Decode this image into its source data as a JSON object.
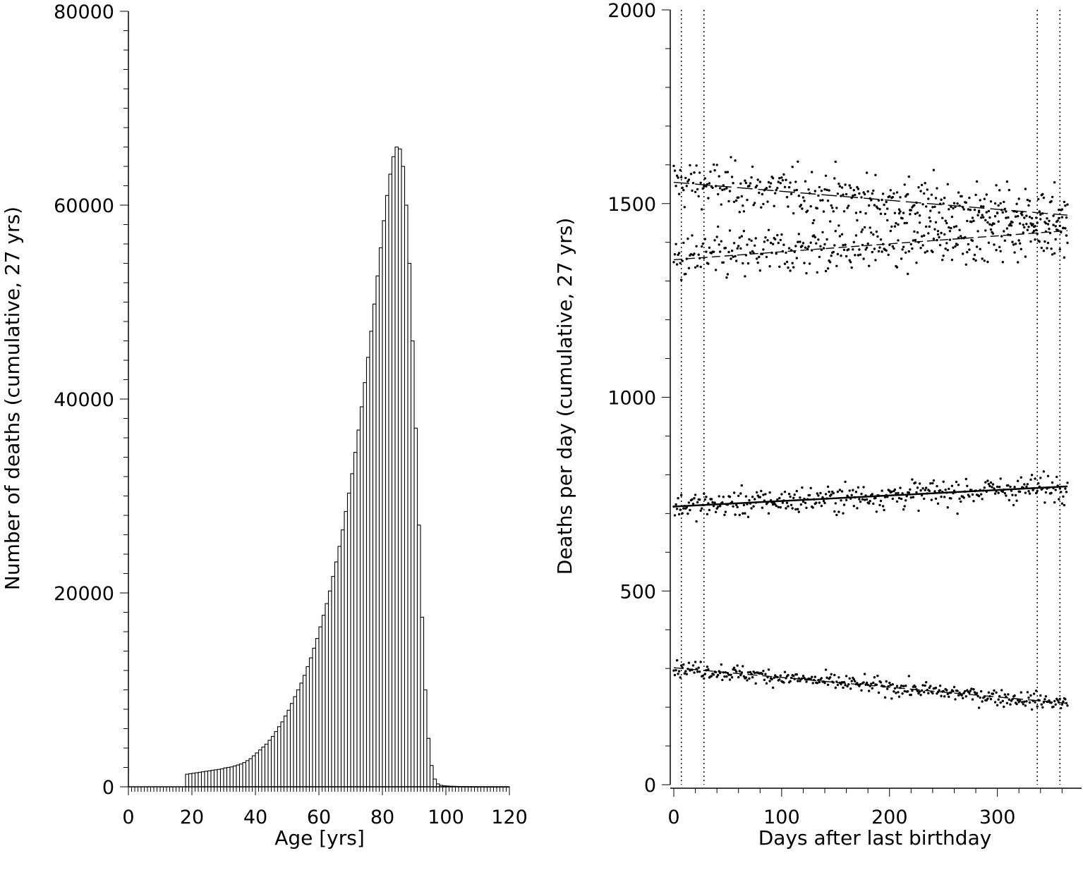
{
  "chart_data": [
    {
      "type": "bar",
      "xlabel": "Age [yrs]",
      "ylabel": "Number of deaths (cumulative, 27 yrs)",
      "xlim": [
        0,
        120
      ],
      "ylim": [
        0,
        80000
      ],
      "xticks": [
        0,
        20,
        40,
        60,
        80,
        100,
        120
      ],
      "yticks": [
        0,
        20000,
        40000,
        60000,
        80000
      ],
      "bar_width_years": 1,
      "x": [
        18,
        19,
        20,
        21,
        22,
        23,
        24,
        25,
        26,
        27,
        28,
        29,
        30,
        31,
        32,
        33,
        34,
        35,
        36,
        37,
        38,
        39,
        40,
        41,
        42,
        43,
        44,
        45,
        46,
        47,
        48,
        49,
        50,
        51,
        52,
        53,
        54,
        55,
        56,
        57,
        58,
        59,
        60,
        61,
        62,
        63,
        64,
        65,
        66,
        67,
        68,
        69,
        70,
        71,
        72,
        73,
        74,
        75,
        76,
        77,
        78,
        79,
        80,
        81,
        82,
        83,
        84,
        85,
        86,
        87,
        88,
        89,
        90,
        91,
        92,
        93,
        94,
        95,
        96,
        97,
        98,
        99,
        100,
        101,
        102,
        103,
        104,
        105,
        106,
        107,
        108,
        109,
        110,
        111,
        112,
        113,
        114,
        115,
        116,
        117,
        118,
        119
      ],
      "values": [
        1300,
        1350,
        1400,
        1450,
        1500,
        1550,
        1600,
        1650,
        1700,
        1750,
        1800,
        1850,
        1950,
        2000,
        2050,
        2150,
        2250,
        2350,
        2500,
        2700,
        2900,
        3200,
        3500,
        3800,
        4100,
        4400,
        4800,
        5200,
        5700,
        6200,
        6700,
        7300,
        7900,
        8600,
        9300,
        10000,
        10700,
        11500,
        12400,
        13300,
        14300,
        15300,
        16500,
        17700,
        18900,
        20200,
        21700,
        23200,
        24800,
        26500,
        28400,
        30300,
        32300,
        34500,
        36800,
        39200,
        41700,
        44300,
        47000,
        49800,
        52700,
        55600,
        58400,
        61000,
        63200,
        65000,
        66000,
        65800,
        64000,
        60000,
        54000,
        46000,
        37000,
        27000,
        17500,
        10000,
        5000,
        2200,
        800,
        300,
        150,
        100,
        80,
        60,
        50,
        40,
        30,
        25,
        20,
        15,
        10,
        8,
        5,
        4,
        3,
        2,
        2,
        1,
        1,
        1,
        1,
        1
      ]
    },
    {
      "type": "scatter",
      "xlabel": "Days after last birthday",
      "ylabel": "Deaths per day (cumulative, 27 yrs)",
      "xlim": [
        0,
        365
      ],
      "ylim": [
        0,
        2000
      ],
      "xticks": [
        0,
        100,
        200,
        300
      ],
      "yticks": [
        0,
        500,
        1000,
        1500,
        2000
      ],
      "reference_lines_x": [
        7,
        28,
        337,
        358
      ],
      "series": [
        {
          "line": [
            1555,
            1470
          ],
          "noise": 45,
          "line_style": "long-dash"
        },
        {
          "line": [
            1355,
            1430
          ],
          "noise": 45,
          "line_style": "short-dash"
        },
        {
          "line": [
            718,
            770
          ],
          "noise": 25,
          "line_style": "solid"
        },
        {
          "line": [
            302,
            210
          ],
          "noise": 15,
          "line_style": "dash"
        }
      ]
    }
  ]
}
